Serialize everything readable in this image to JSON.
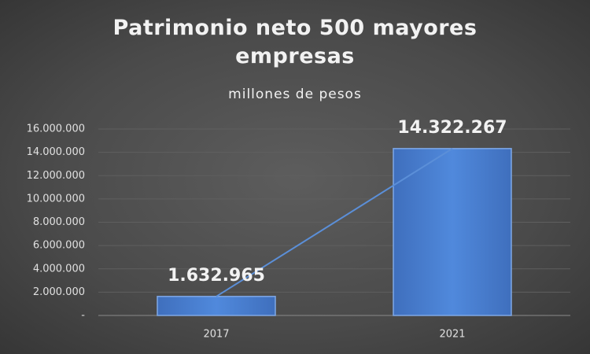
{
  "chart_data": {
    "type": "bar",
    "title": "Patrimonio neto 500 mayores empresas",
    "subtitle": "millones de pesos",
    "categories": [
      "2017",
      "2021"
    ],
    "values": [
      1632965,
      14322267
    ],
    "value_labels": [
      "1.632.965",
      "14.322.267"
    ],
    "color": "#4a80d4",
    "trendline": true,
    "ylim": [
      0,
      16000000
    ],
    "yticks": [
      {
        "value": 0,
        "label": "-"
      },
      {
        "value": 2000000,
        "label": "2.000.000"
      },
      {
        "value": 4000000,
        "label": "4.000.000"
      },
      {
        "value": 6000000,
        "label": "6.000.000"
      },
      {
        "value": 8000000,
        "label": "8.000.000"
      },
      {
        "value": 10000000,
        "label": "10.000.000"
      },
      {
        "value": 12000000,
        "label": "12.000.000"
      },
      {
        "value": 14000000,
        "label": "14.000.000"
      },
      {
        "value": 16000000,
        "label": "16.000.000"
      }
    ],
    "grid": true
  }
}
